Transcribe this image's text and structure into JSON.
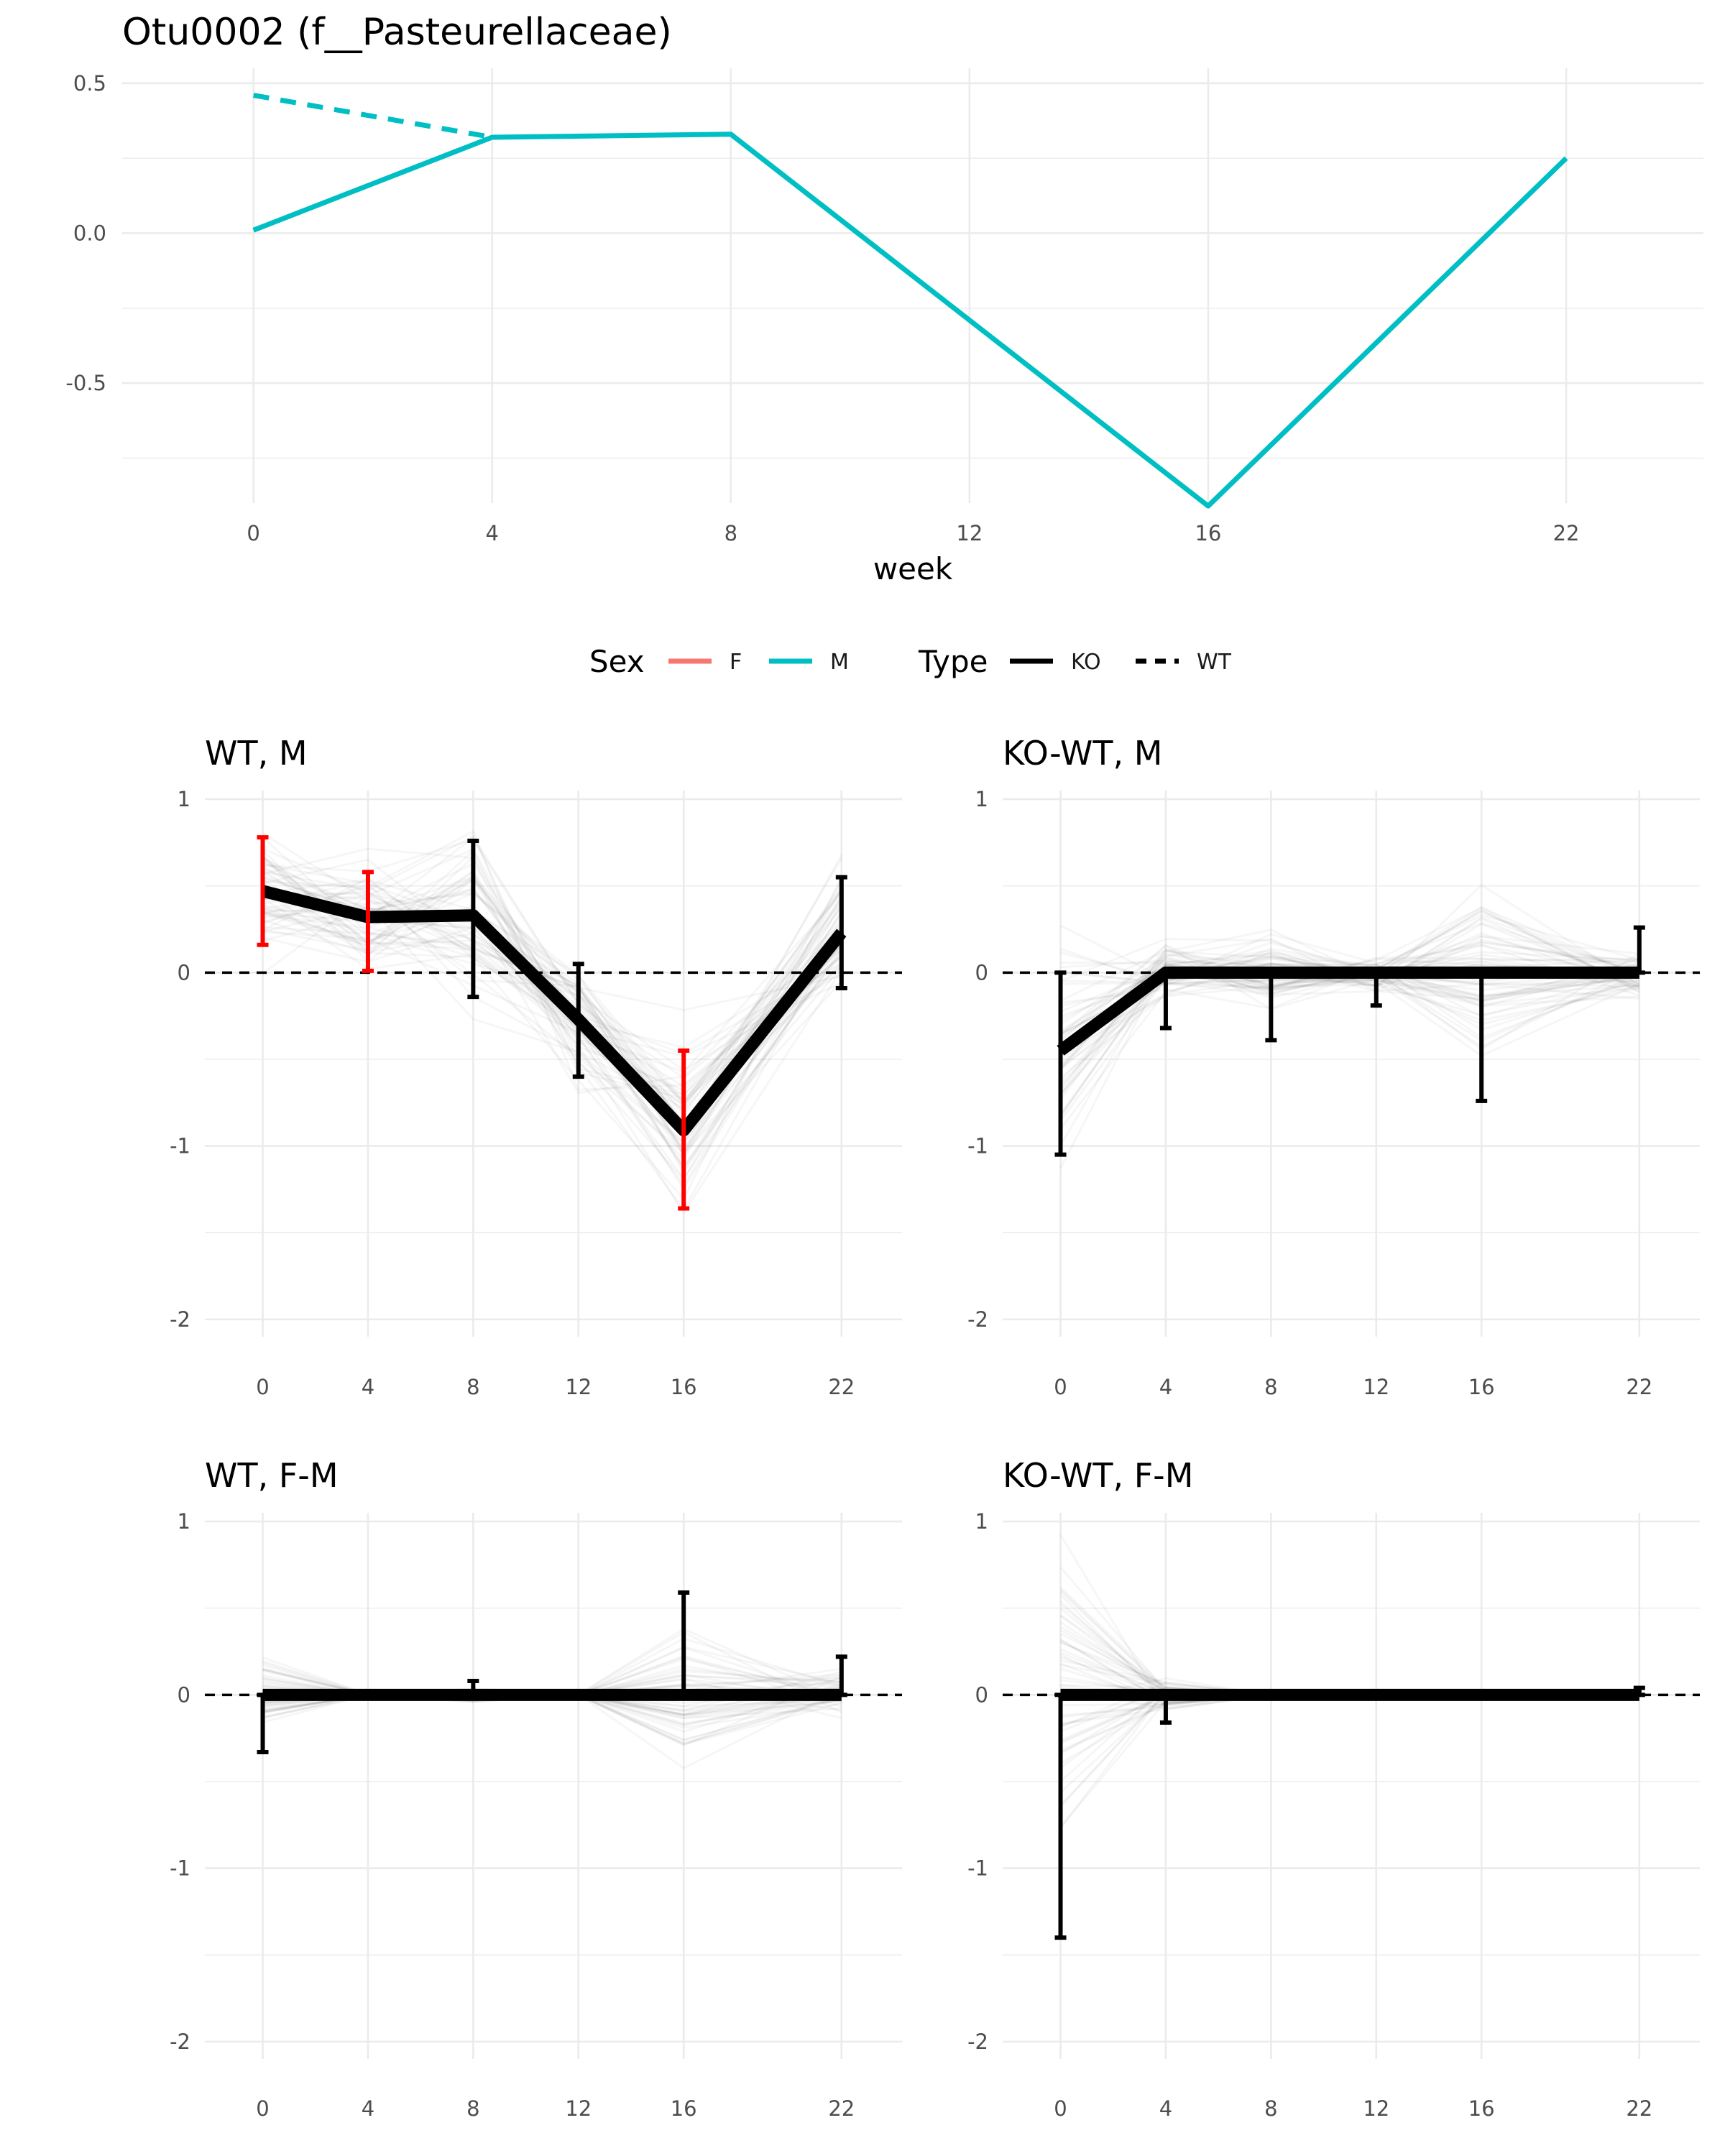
{
  "chart_data": [
    {
      "type": "line",
      "title": "Otu0002 (f__Pasteurellaceae)",
      "xlabel": "week",
      "ylabel": "",
      "x_ticks": [
        0,
        4,
        8,
        12,
        16,
        22
      ],
      "y_ticks": [
        0.5,
        0.0,
        -0.5
      ],
      "y_tick_labels": [
        "0.5",
        "0.0",
        "-0.5"
      ],
      "xlim": [
        -2.2,
        24.3
      ],
      "ylim": [
        -0.9,
        0.55
      ],
      "grid": true,
      "series": [
        {
          "sex": "M",
          "type": "KO",
          "color": "#00BFC4",
          "dash": "solid",
          "x": [
            0,
            4,
            8,
            16,
            22
          ],
          "y": [
            0.01,
            0.32,
            0.33,
            -0.91,
            0.25
          ]
        },
        {
          "sex": "M",
          "type": "WT",
          "color": "#00BFC4",
          "dash": "dashed",
          "x": [
            0,
            4
          ],
          "y": [
            0.46,
            0.32
          ]
        }
      ]
    },
    {
      "type": "line",
      "title": "WT, M",
      "x_ticks": [
        0,
        4,
        8,
        12,
        16,
        22
      ],
      "y_ticks": [
        1,
        0,
        -1,
        -2
      ],
      "y_tick_labels": [
        "1",
        "0",
        "-1",
        "-2"
      ],
      "xlim": [
        -2.2,
        24.3
      ],
      "ylim": [
        -2.1,
        1.05
      ],
      "reference_line": 0,
      "x": [
        0,
        4,
        8,
        12,
        16,
        22
      ],
      "mean": [
        0.47,
        0.32,
        0.33,
        -0.27,
        -0.91,
        0.23
      ],
      "lower": [
        0.16,
        0.01,
        -0.14,
        -0.6,
        -1.36,
        -0.09
      ],
      "upper": [
        0.78,
        0.58,
        0.76,
        0.05,
        -0.45,
        0.55
      ],
      "significant": [
        true,
        true,
        false,
        false,
        true,
        false
      ],
      "significant_color": "#FF0000",
      "spread": [
        0.14,
        0.12,
        0.2,
        0.15,
        0.2,
        0.14
      ]
    },
    {
      "type": "line",
      "title": "KO-WT, M",
      "x_ticks": [
        0,
        4,
        8,
        12,
        16,
        22
      ],
      "y_ticks": [
        1,
        0,
        -1,
        -2
      ],
      "y_tick_labels": [
        "1",
        "0",
        "-1",
        "-2"
      ],
      "xlim": [
        -2.2,
        24.3
      ],
      "ylim": [
        -2.1,
        1.05
      ],
      "reference_line": 0,
      "x": [
        0,
        4,
        8,
        12,
        16,
        22
      ],
      "mean": [
        -0.45,
        0.0,
        0.0,
        0.0,
        0.0,
        0.0
      ],
      "lower": [
        -1.05,
        -0.32,
        -0.39,
        -0.19,
        -0.74,
        0.0
      ],
      "upper": [
        0.0,
        0.0,
        0.0,
        0.0,
        0.0,
        0.26
      ],
      "significant": [
        false,
        false,
        false,
        false,
        false,
        false
      ],
      "significant_color": "#FF0000",
      "spread": [
        0.3,
        0.06,
        0.08,
        0.04,
        0.15,
        0.06
      ]
    },
    {
      "type": "line",
      "title": "WT, F-M",
      "x_ticks": [
        0,
        4,
        8,
        12,
        16,
        22
      ],
      "y_ticks": [
        1,
        0,
        -1,
        -2
      ],
      "y_tick_labels": [
        "1",
        "0",
        "-1",
        "-2"
      ],
      "xlim": [
        -2.2,
        24.3
      ],
      "ylim": [
        -2.1,
        1.05
      ],
      "reference_line": 0,
      "x": [
        0,
        4,
        8,
        12,
        16,
        22
      ],
      "mean": [
        0.0,
        0.0,
        0.0,
        0.0,
        0.0,
        0.0
      ],
      "lower": [
        -0.33,
        0.0,
        0.0,
        0.0,
        0.0,
        0.0
      ],
      "upper": [
        0.0,
        0.0,
        0.08,
        0.0,
        0.59,
        0.22
      ],
      "significant": [
        false,
        false,
        false,
        false,
        false,
        false
      ],
      "significant_color": "#FF0000",
      "spread": [
        0.08,
        0.02,
        0.05,
        0.02,
        0.25,
        0.06
      ]
    },
    {
      "type": "line",
      "title": "KO-WT, F-M",
      "x_ticks": [
        0,
        4,
        8,
        12,
        16,
        22
      ],
      "y_ticks": [
        1,
        0,
        -1,
        -2
      ],
      "y_tick_labels": [
        "1",
        "0",
        "-1",
        "-2"
      ],
      "xlim": [
        -2.2,
        24.3
      ],
      "ylim": [
        -2.1,
        1.05
      ],
      "reference_line": 0,
      "x": [
        0,
        4,
        8,
        12,
        16,
        22
      ],
      "mean": [
        0.0,
        0.0,
        0.0,
        0.0,
        0.0,
        0.0
      ],
      "lower": [
        -1.4,
        -0.16,
        0.0,
        0.0,
        0.0,
        0.0
      ],
      "upper": [
        0.0,
        0.0,
        0.0,
        0.0,
        0.0,
        0.04
      ],
      "significant": [
        false,
        false,
        false,
        false,
        false,
        false
      ],
      "significant_color": "#FF0000",
      "spread": [
        0.4,
        0.05,
        0.02,
        0.02,
        0.08,
        0.03
      ]
    }
  ],
  "legend": {
    "sex_title": "Sex",
    "sex_items": [
      {
        "label": "F",
        "color": "#F8766D"
      },
      {
        "label": "M",
        "color": "#00BFC4"
      }
    ],
    "type_title": "Type",
    "type_items": [
      {
        "label": "KO",
        "dash": "solid"
      },
      {
        "label": "WT",
        "dash": "dashed"
      }
    ]
  }
}
